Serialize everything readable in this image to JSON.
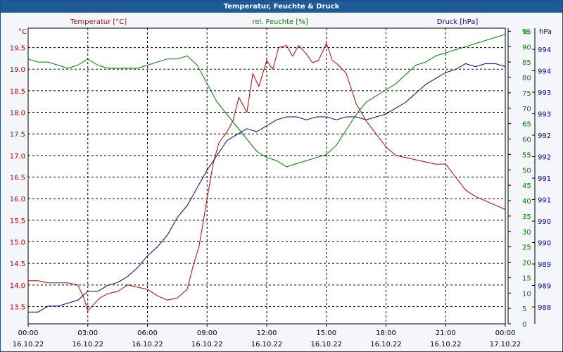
{
  "window": {
    "title": "Temperatur, Feuchte & Druck"
  },
  "chart_data": {
    "type": "line",
    "title": "Temperatur, Feuchte & Druck",
    "grid": true,
    "colors": {
      "temperature": "#c00000",
      "humidity": "#008000",
      "pressure": "#000099"
    },
    "x_ticks": [
      {
        "time": "00:00",
        "date": "16.10.22"
      },
      {
        "time": "03:00",
        "date": "16.10.22"
      },
      {
        "time": "06:00",
        "date": "16.10.22"
      },
      {
        "time": "09:00",
        "date": "16.10.22"
      },
      {
        "time": "12:00",
        "date": "16.10.22"
      },
      {
        "time": "15:00",
        "date": "16.10.22"
      },
      {
        "time": "18:00",
        "date": "16.10.22"
      },
      {
        "time": "21:00",
        "date": "16.10.22"
      },
      {
        "time": "00:00",
        "date": "17.10.22"
      }
    ],
    "axes": {
      "left": {
        "label": "Temperatur [°C]",
        "unit": "°C",
        "ylim": [
          13.1,
          19.95
        ],
        "ticks": [
          "19.5",
          "19.0",
          "18.5",
          "18.0",
          "17.5",
          "17.0",
          "16.5",
          "16.0",
          "15.5",
          "15.0",
          "14.5",
          "14.0",
          "13.5"
        ]
      },
      "middle": {
        "label": "rel. Feuchte [%]",
        "ylim": [
          0,
          96
        ],
        "ticks": [
          "95",
          "90",
          "85",
          "80",
          "75",
          "70",
          "65",
          "60",
          "55",
          "50",
          "45",
          "40",
          "35",
          "30",
          "25",
          "20",
          "15",
          "10",
          "5",
          "0"
        ],
        "top_unit": "%"
      },
      "right": {
        "label": "Druck [hPa]",
        "unit": "hPa",
        "ticks": [
          "994",
          "994",
          "993",
          "993",
          "992",
          "992",
          "991",
          "991",
          "990",
          "990",
          "989",
          "989",
          "988"
        ]
      }
    },
    "series": [
      {
        "name": "Temperatur [°C]",
        "axis": "left",
        "x": [
          0,
          0.5,
          1,
          1.5,
          2,
          2.5,
          2.8,
          3,
          3.3,
          3.6,
          4,
          4.5,
          5,
          5.5,
          6,
          6.5,
          7,
          7.5,
          8,
          8.3,
          8.6,
          9,
          9.3,
          9.6,
          10,
          10.3,
          10.6,
          11,
          11.3,
          11.6,
          12,
          12.3,
          12.6,
          13,
          13.3,
          13.6,
          14,
          14.3,
          14.6,
          15,
          15.3,
          15.6,
          16,
          16.5,
          17,
          17.5,
          18,
          18.5,
          19,
          19.5,
          20,
          20.5,
          21,
          21.5,
          22,
          22.5,
          23,
          23.5,
          24
        ],
        "values": [
          14.1,
          14.1,
          14.05,
          14.05,
          14.05,
          14.0,
          13.7,
          13.4,
          13.55,
          13.7,
          13.8,
          13.85,
          14.0,
          13.95,
          13.9,
          13.75,
          13.65,
          13.7,
          13.9,
          14.45,
          14.9,
          16.0,
          16.8,
          17.3,
          17.55,
          17.8,
          18.35,
          18.0,
          18.9,
          18.6,
          19.2,
          19.0,
          19.5,
          19.55,
          19.3,
          19.55,
          19.35,
          19.15,
          19.2,
          19.6,
          19.2,
          19.1,
          18.9,
          18.2,
          17.8,
          17.5,
          17.2,
          17.0,
          16.95,
          16.9,
          16.85,
          16.8,
          16.8,
          16.5,
          16.2,
          16.05,
          15.95,
          15.85,
          15.75
        ]
      },
      {
        "name": "rel. Feuchte [%]",
        "axis": "middle",
        "x": [
          0,
          0.5,
          1,
          1.5,
          2,
          2.5,
          3,
          3.5,
          4,
          4.5,
          5,
          5.5,
          6,
          6.5,
          7,
          7.5,
          8,
          8.5,
          9,
          9.5,
          10,
          10.5,
          11,
          11.5,
          12,
          12.5,
          13,
          13.5,
          14,
          14.5,
          15,
          15.5,
          16,
          16.5,
          17,
          17.5,
          18,
          18.5,
          19,
          19.5,
          20,
          20.5,
          21,
          21.5,
          22,
          22.5,
          23,
          23.5,
          24
        ],
        "values": [
          86,
          85,
          85,
          84,
          83,
          84,
          86,
          84,
          83,
          83,
          83,
          83,
          84,
          85,
          86,
          86,
          87,
          84,
          78,
          72,
          68,
          64,
          60,
          56,
          54,
          53,
          51,
          52,
          53,
          54,
          55,
          58,
          63,
          68,
          72,
          74,
          76,
          78,
          81,
          84,
          85,
          87,
          88,
          89,
          90,
          91,
          92,
          93,
          94
        ]
      },
      {
        "name": "Druck [hPa]",
        "axis": "right",
        "x": [
          0,
          0.5,
          1,
          1.5,
          2,
          2.5,
          3,
          3.5,
          4,
          4.5,
          5,
          5.5,
          6,
          6.5,
          7,
          7.5,
          8,
          8.5,
          9,
          9.5,
          10,
          10.5,
          11,
          11.5,
          12,
          12.5,
          13,
          13.5,
          14,
          14.5,
          15,
          15.5,
          16,
          16.5,
          17,
          17.5,
          18,
          18.5,
          19,
          19.5,
          20,
          20.5,
          21,
          21.5,
          22,
          22.5,
          23,
          23.5,
          24
        ],
        "values": [
          4,
          4,
          6,
          6,
          7,
          8,
          11,
          11,
          13,
          14,
          16,
          19,
          23,
          26,
          30,
          36,
          40,
          46,
          52,
          57,
          62,
          64,
          66,
          65,
          67,
          69,
          70,
          70,
          69,
          70,
          70,
          69,
          70,
          70,
          69,
          70,
          71,
          73,
          75,
          78,
          81,
          83,
          85,
          86,
          88,
          87,
          88,
          88,
          87
        ]
      }
    ]
  }
}
